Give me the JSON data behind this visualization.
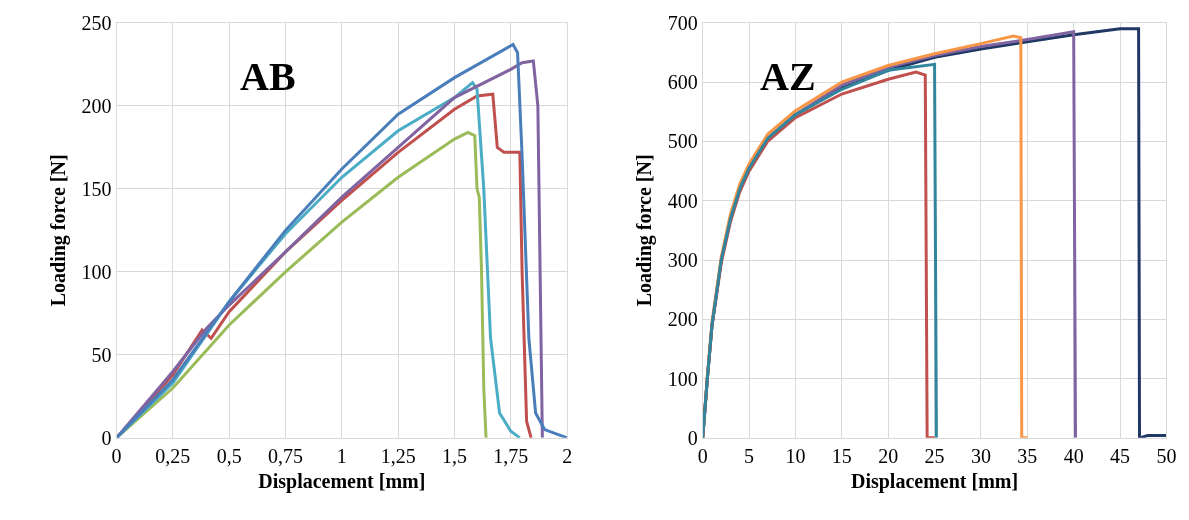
{
  "chart_data": [
    {
      "type": "line",
      "title": "AB",
      "xlabel": "Displacement [mm]",
      "ylabel": "Loading force [N]",
      "xlim": [
        0,
        2
      ],
      "ylim": [
        0,
        250
      ],
      "xticks": [
        0,
        {
          "value": 0.25,
          "label": "0,25"
        },
        {
          "value": 0.5,
          "label": "0,5"
        },
        {
          "value": 0.75,
          "label": "0,75"
        },
        1,
        {
          "value": 1.25,
          "label": "1,25"
        },
        {
          "value": 1.5,
          "label": "1,5"
        },
        {
          "value": 1.75,
          "label": "1,75"
        },
        2
      ],
      "yticks": [
        0,
        50,
        100,
        150,
        200,
        250
      ],
      "grid": true,
      "line_style": "solid",
      "marker": "none",
      "series": [
        {
          "color": "#9bbb59",
          "x": [
            0,
            0.25,
            0.5,
            0.75,
            1,
            1.25,
            1.5,
            1.56,
            1.59,
            1.6,
            1.61,
            1.62,
            1.63,
            1.64
          ],
          "values": [
            0,
            30,
            68,
            100,
            130,
            157,
            180,
            184,
            182,
            150,
            145,
            100,
            30,
            0
          ]
        },
        {
          "color": "#c0504d",
          "x": [
            0,
            0.25,
            0.38,
            0.42,
            0.5,
            0.75,
            1,
            1.25,
            1.5,
            1.6,
            1.67,
            1.69,
            1.72,
            1.79,
            1.8,
            1.82,
            1.84
          ],
          "values": [
            0,
            38,
            65,
            60,
            76,
            112,
            143,
            172,
            198,
            206,
            207,
            175,
            172,
            172,
            100,
            10,
            0
          ]
        },
        {
          "color": "#4bacc6",
          "x": [
            0,
            0.25,
            0.5,
            0.75,
            1,
            1.25,
            1.5,
            1.58,
            1.6,
            1.63,
            1.66,
            1.7,
            1.75,
            1.79
          ],
          "values": [
            0,
            33,
            82,
            123,
            157,
            185,
            205,
            214,
            210,
            150,
            60,
            15,
            4,
            0
          ]
        },
        {
          "color": "#8064a2",
          "x": [
            0,
            0.25,
            0.4,
            0.5,
            0.75,
            1,
            1.25,
            1.5,
            1.75,
            1.8,
            1.85,
            1.87,
            1.88,
            1.89
          ],
          "values": [
            0,
            40,
            66,
            80,
            112,
            145,
            175,
            205,
            222,
            226,
            227,
            200,
            100,
            0
          ]
        },
        {
          "color": "#4a7ebb",
          "x": [
            0,
            0.25,
            0.5,
            0.75,
            1,
            1.25,
            1.5,
            1.76,
            1.78,
            1.8,
            1.83,
            1.86,
            1.9,
            2
          ],
          "values": [
            0,
            35,
            82,
            125,
            162,
            195,
            217,
            237,
            232,
            170,
            60,
            15,
            5,
            0
          ]
        }
      ]
    },
    {
      "type": "line",
      "title": "AZ",
      "xlabel": "Displacement [mm]",
      "ylabel": "Loading force [N]",
      "xlim": [
        0,
        50
      ],
      "ylim": [
        0,
        700
      ],
      "xticks": [
        0,
        5,
        10,
        15,
        20,
        25,
        30,
        35,
        40,
        45,
        50
      ],
      "yticks": [
        0,
        100,
        200,
        300,
        400,
        500,
        600,
        700
      ],
      "grid": true,
      "line_style": "solid",
      "marker": "none",
      "series": [
        {
          "color": "#1f3864",
          "x": [
            0,
            0.5,
            1,
            2,
            3,
            4,
            5,
            7,
            10,
            15,
            20,
            25,
            30,
            35,
            40,
            45,
            47,
            47.1,
            48,
            50
          ],
          "values": [
            0,
            100,
            190,
            300,
            370,
            420,
            455,
            505,
            545,
            590,
            620,
            642,
            656,
            668,
            680,
            690,
            690,
            0,
            4,
            4
          ]
        },
        {
          "color": "#8064a2",
          "x": [
            0,
            0.5,
            1,
            2,
            3,
            4,
            5,
            7,
            10,
            15,
            20,
            25,
            30,
            35,
            40,
            40.2
          ],
          "values": [
            0,
            100,
            190,
            300,
            370,
            420,
            455,
            505,
            545,
            595,
            625,
            645,
            660,
            672,
            685,
            0
          ]
        },
        {
          "color": "#f79646",
          "x": [
            0,
            0.5,
            1,
            2,
            3,
            4,
            5,
            7,
            10,
            15,
            20,
            25,
            30,
            33.5,
            34.3,
            34.4,
            35
          ],
          "values": [
            0,
            105,
            195,
            305,
            378,
            428,
            462,
            512,
            552,
            600,
            628,
            648,
            665,
            678,
            675,
            0,
            0
          ]
        },
        {
          "color": "#c0504d",
          "x": [
            0,
            0.5,
            1,
            2,
            3,
            4,
            5,
            7,
            10,
            15,
            20,
            23,
            24,
            24.2,
            25
          ],
          "values": [
            0,
            100,
            188,
            295,
            365,
            415,
            450,
            500,
            540,
            580,
            605,
            617,
            612,
            0,
            0
          ]
        },
        {
          "color": "#31859c",
          "x": [
            0,
            0.5,
            1,
            2,
            3,
            4,
            5,
            7,
            10,
            15,
            20,
            25,
            25.2
          ],
          "values": [
            0,
            100,
            190,
            300,
            370,
            420,
            455,
            505,
            545,
            588,
            620,
            630,
            0
          ]
        }
      ]
    }
  ]
}
